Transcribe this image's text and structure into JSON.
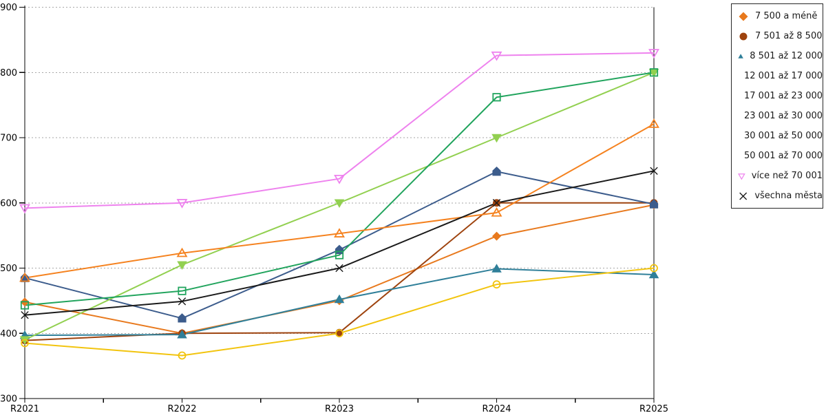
{
  "chart_data": {
    "type": "line",
    "title": "",
    "xlabel": "",
    "ylabel": "",
    "categories": [
      "R2021",
      "R2022",
      "R2023",
      "R2024",
      "R2025"
    ],
    "series": [
      {
        "name": "7 500 a méně",
        "color": "#e8791d",
        "marker": "diamond",
        "marker_style": "filled",
        "values": [
          448,
          400,
          450,
          549,
          597
        ]
      },
      {
        "name": "7 501 až 8 500",
        "color": "#9e430e",
        "marker": "circle",
        "marker_style": "filled",
        "values": [
          389,
          400,
          401,
          600,
          600
        ]
      },
      {
        "name": "8 501 až 12 000",
        "color": "#2f7f99",
        "marker": "triangle-up",
        "marker_style": "filled",
        "values": [
          397,
          398,
          452,
          499,
          490
        ]
      },
      {
        "name": "12 001 až 17 000",
        "color": "#3c5c8c",
        "marker": "pentagon",
        "marker_style": "filled",
        "values": [
          485,
          423,
          528,
          648,
          598
        ]
      },
      {
        "name": "17 001 až 23 000",
        "color": "#92d050",
        "marker": "triangle-down",
        "marker_style": "filled",
        "values": [
          390,
          505,
          600,
          700,
          800
        ]
      },
      {
        "name": "23 001 až 30 000",
        "color": "#21a45d",
        "marker": "square",
        "marker_style": "open",
        "values": [
          443,
          465,
          520,
          762,
          800
        ]
      },
      {
        "name": "30 001 až 50 000",
        "color": "#f2c40e",
        "marker": "circle",
        "marker_style": "open",
        "values": [
          385,
          366,
          400,
          475,
          500
        ]
      },
      {
        "name": "50 001 až 70 000",
        "color": "#f5821f",
        "marker": "triangle-up",
        "marker_style": "open",
        "values": [
          485,
          523,
          553,
          585,
          721
        ]
      },
      {
        "name": "více než 70 001",
        "color": "#ee82ee",
        "marker": "triangle-down",
        "marker_style": "open",
        "values": [
          592,
          600,
          637,
          826,
          830
        ]
      },
      {
        "name": "všechna města",
        "color": "#1a1a1a",
        "marker": "x",
        "marker_style": "line",
        "values": [
          428,
          449,
          500,
          600,
          649
        ]
      }
    ],
    "ylim": [
      300,
      900
    ],
    "yticks": [
      300,
      400,
      500,
      600,
      700,
      800,
      900
    ],
    "grid": "horizontal-dotted",
    "grid_color": "#a6a6a6",
    "axis_color": "#000000",
    "legend_position": "top-right"
  }
}
